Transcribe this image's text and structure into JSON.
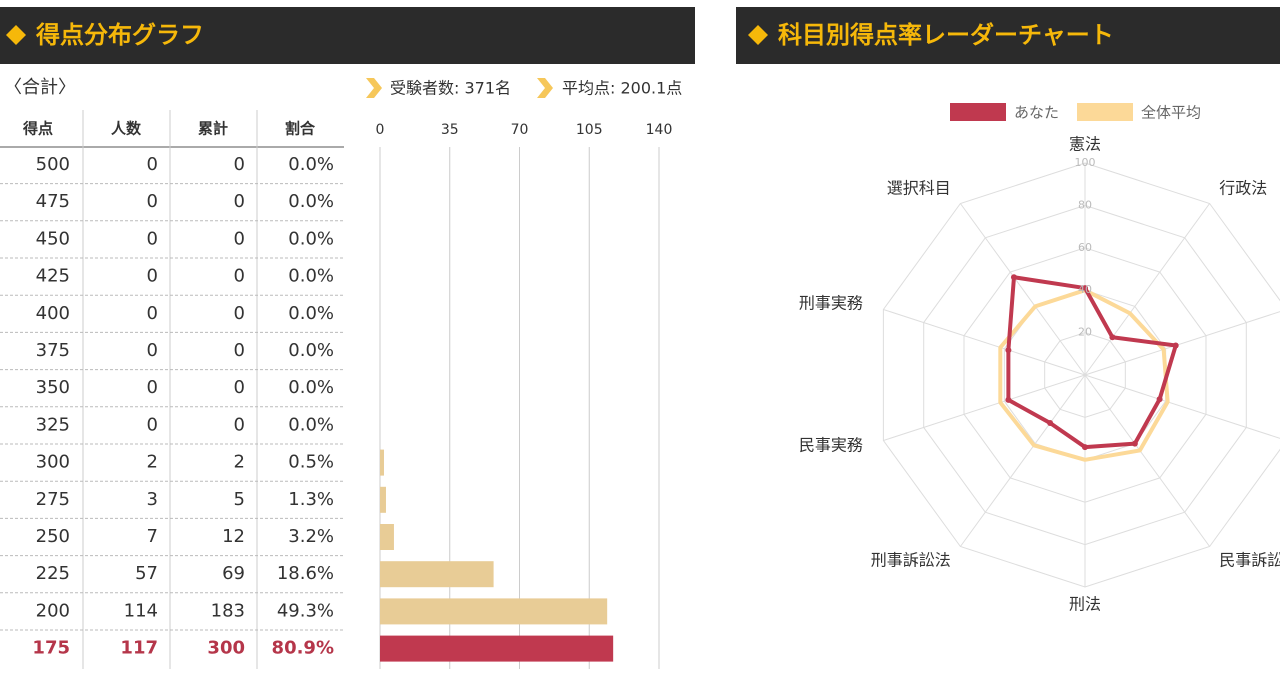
{
  "left_panel": {
    "title": "得点分布グラフ",
    "section": "〈合計〉",
    "stats": [
      "受験者数: 371名",
      "平均点: 200.1点"
    ]
  },
  "table": {
    "header": [
      "得点",
      "人数",
      "累計",
      "割合"
    ],
    "rows": [
      [
        500,
        0,
        0,
        "0.0%"
      ],
      [
        475,
        0,
        0,
        "0.0%"
      ],
      [
        450,
        0,
        0,
        "0.0%"
      ],
      [
        425,
        0,
        0,
        "0.0%"
      ],
      [
        400,
        0,
        0,
        "0.0%"
      ],
      [
        375,
        0,
        0,
        "0.0%"
      ],
      [
        350,
        0,
        0,
        "0.0%"
      ],
      [
        325,
        0,
        0,
        "0.0%"
      ],
      [
        300,
        2,
        2,
        "0.5%"
      ],
      [
        275,
        3,
        5,
        "1.3%"
      ],
      [
        250,
        7,
        12,
        "3.2%"
      ],
      [
        225,
        57,
        69,
        "18.6%"
      ],
      [
        200,
        114,
        183,
        "49.3%"
      ],
      [
        175,
        117,
        300,
        "80.9%"
      ]
    ]
  },
  "right_panel": {
    "title": "科目別得点率レーダーチャート"
  },
  "chart_data": [
    {
      "type": "bar",
      "values": [
        0,
        0,
        0,
        0,
        0,
        0,
        0,
        0,
        2,
        3,
        7,
        57,
        114,
        117
      ],
      "colors": [
        "#e8cc96",
        "#e8cc96",
        "#e8cc96",
        "#e8cc96",
        "#e8cc96",
        "#e8cc96",
        "#e8cc96",
        "#e8cc96",
        "#e8cc96",
        "#e8cc96",
        "#e8cc96",
        "#e8cc96",
        "#e8cc96",
        "#c0394f"
      ],
      "xlim": [
        0,
        140
      ],
      "xticks": [
        0,
        35,
        70,
        105,
        140
      ],
      "grid": true
    },
    {
      "type": "radar",
      "categories": [
        "憲法",
        "行政法",
        null,
        null,
        "民事訴訟",
        "刑法",
        "刑事訴訟法",
        "民事実務",
        "刑事実務",
        "選択科目"
      ],
      "rlim": [
        0,
        100
      ],
      "rticks": [
        20,
        40,
        60,
        80,
        100
      ],
      "legend": "top",
      "series": [
        {
          "name": "あなた",
          "color": "#c0394f",
          "values": [
            41,
            22,
            45,
            37,
            40,
            34,
            28,
            38,
            38,
            57
          ]
        },
        {
          "name": "全体平均",
          "color": "#fcd998",
          "values": [
            40,
            36,
            39,
            41,
            44,
            40,
            41,
            42,
            42,
            40
          ]
        }
      ]
    }
  ]
}
